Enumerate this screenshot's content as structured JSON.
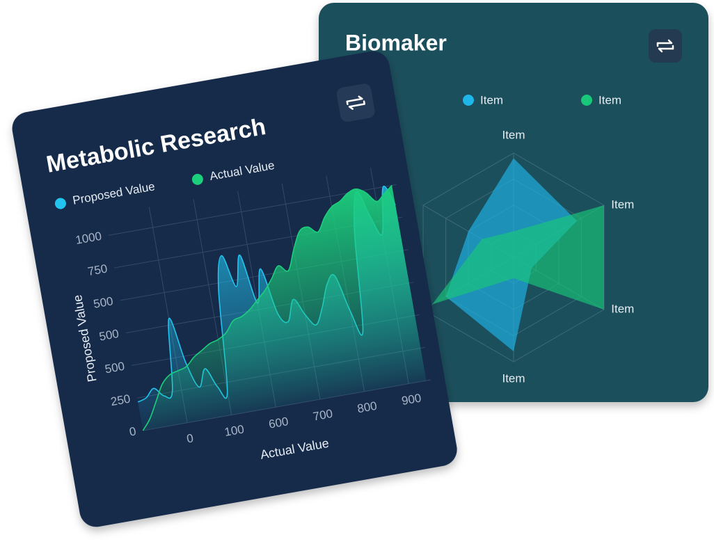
{
  "chart_data": [
    {
      "type": "area",
      "title": "Metabolic Research",
      "x_label": "Actual Value",
      "y_label": "Proposed Value",
      "x": [
        -100,
        -80,
        -60,
        -40,
        -20,
        0,
        20,
        40,
        60,
        80,
        100,
        120,
        140,
        160,
        180,
        200,
        220,
        240,
        260,
        280,
        300,
        320,
        340,
        360,
        380,
        400,
        420,
        440,
        460,
        480,
        500,
        520,
        540
      ],
      "series": [
        {
          "name": "Proposed Value",
          "color": "#22c3ef",
          "values": [
            220,
            240,
            300,
            230,
            260,
            800,
            450,
            250,
            380,
            230,
            180,
            950,
            1200,
            950,
            1180,
            800,
            1050,
            700,
            620,
            780,
            650,
            560,
            680,
            850,
            900,
            620,
            450,
            1200,
            1500,
            1300,
            1150,
            1500,
            1350
          ]
        },
        {
          "name": "Actual Value",
          "color": "#1ccf7c",
          "values": [
            0,
            80,
            200,
            320,
            380,
            400,
            420,
            480,
            520,
            560,
            580,
            620,
            700,
            720,
            760,
            820,
            880,
            960,
            1050,
            1000,
            1150,
            1280,
            1300,
            1250,
            1350,
            1420,
            1450,
            1500,
            1520,
            1480,
            1400,
            1450,
            1500
          ]
        }
      ],
      "xlim": [
        -100,
        550
      ],
      "ylim": [
        0,
        1500
      ],
      "xticks": [
        0,
        100,
        {
          "value": 200,
          "label": "600"
        },
        {
          "value": 300,
          "label": "700"
        },
        {
          "value": 400,
          "label": "800"
        },
        {
          "value": 500,
          "label": "900"
        }
      ],
      "yticks": [
        0,
        250,
        500,
        {
          "value": 750,
          "label": "500"
        },
        {
          "value": 1000,
          "label": "500"
        },
        {
          "value": 1250,
          "label": "750"
        },
        {
          "value": 1500,
          "label": "1000"
        }
      ],
      "grid": true
    },
    {
      "type": "radar",
      "title": "Biomaker",
      "categories": [
        "Item",
        "Item",
        "Item",
        "Item",
        null,
        null
      ],
      "series": [
        {
          "name": "Item",
          "color": "#1fb6ea",
          "values": [
            95,
            70,
            20,
            90,
            75,
            50
          ]
        },
        {
          "name": "Item",
          "color": "#18c77a",
          "values": [
            25,
            100,
            100,
            20,
            90,
            35
          ]
        }
      ],
      "rlim": [
        0,
        100
      ],
      "rticks": [
        25,
        50,
        75,
        100
      ]
    }
  ]
}
